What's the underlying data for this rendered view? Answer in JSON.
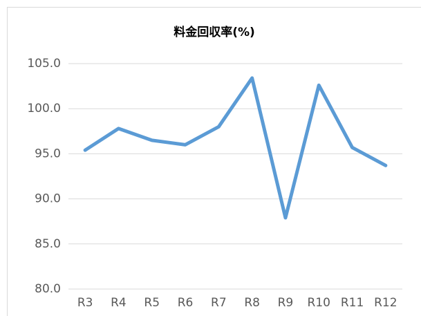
{
  "chart_data": {
    "type": "line",
    "title": "料金回収率(%)",
    "categories": [
      "R3",
      "R4",
      "R5",
      "R6",
      "R7",
      "R8",
      "R9",
      "R10",
      "R11",
      "R12"
    ],
    "series": [
      {
        "name": "料金回収率",
        "color": "#5b9bd5",
        "values": [
          95.4,
          97.8,
          96.5,
          96.0,
          98.0,
          103.4,
          87.9,
          102.6,
          95.7,
          93.7
        ]
      }
    ],
    "ylim": [
      80,
      105
    ],
    "yticks": [
      {
        "value": 80,
        "label": "80.0"
      },
      {
        "value": 85,
        "label": "85.0"
      },
      {
        "value": 90,
        "label": "90.0"
      },
      {
        "value": 95,
        "label": "95.0"
      },
      {
        "value": 100,
        "label": "100.0"
      },
      {
        "value": 105,
        "label": "105.0"
      }
    ],
    "grid": true
  }
}
